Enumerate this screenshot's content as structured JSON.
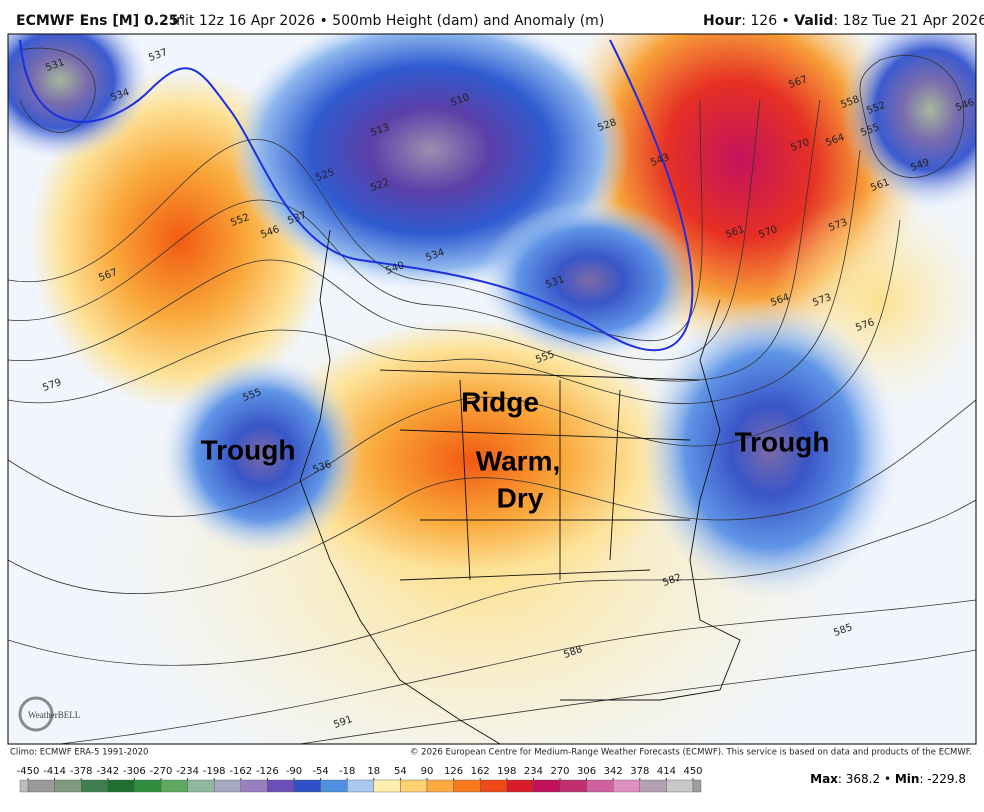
{
  "header": {
    "model": "ECMWF Ens [M] 0.25°",
    "description": "Init 12z 16 Apr 2026 • 500mb Height (dam) and Anomaly (m)",
    "hour_label": "Hour",
    "hour": ": 126 • ",
    "valid_label": "Valid",
    "valid": ": 18z Tue 21 Apr 2026"
  },
  "map": {
    "annotations": [
      "Ridge",
      "Trough",
      "Warm,",
      "Dry",
      "Trough"
    ],
    "contour_labels": [
      "531",
      "534",
      "537",
      "510",
      "513",
      "522",
      "525",
      "537",
      "546",
      "552",
      "567",
      "579",
      "555",
      "540",
      "534",
      "531",
      "555",
      "528",
      "543",
      "567",
      "570",
      "564",
      "561",
      "570",
      "573",
      "564",
      "573",
      "576",
      "558",
      "555",
      "552",
      "546",
      "549",
      "561",
      "536",
      "582",
      "585",
      "588",
      "591"
    ],
    "logo": "WeatherBELL"
  },
  "footer": {
    "climo": "Climo: ECMWF ERA-5 1991-2020",
    "copyright": "© 2026 European Centre for Medium-Range Weather Forecasts (ECMWF). This service is based on data and products of the ECMWF.",
    "max_label": "Max",
    "max": ": 368.2 • ",
    "min_label": "Min",
    "min": ": -229.8"
  },
  "colorbar": {
    "ticks": [
      -450,
      -414,
      -378,
      -342,
      -306,
      -270,
      -234,
      -198,
      -162,
      -126,
      -90,
      -54,
      -18,
      18,
      54,
      90,
      126,
      162,
      198,
      234,
      270,
      306,
      342,
      378,
      414,
      450
    ]
  }
}
